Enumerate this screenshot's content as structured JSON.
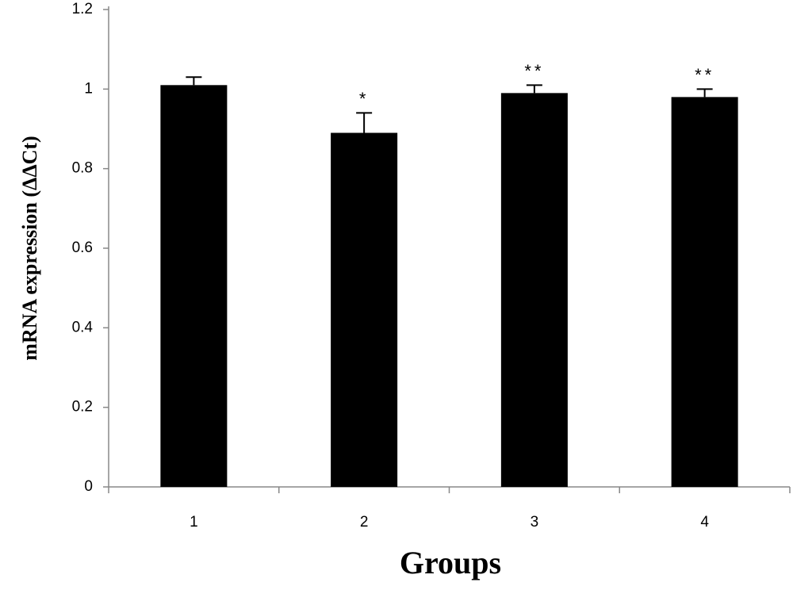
{
  "chart_data": {
    "type": "bar",
    "x_label": "Groups",
    "y_label": "mRNA expression (ΔΔCt)",
    "categories": [
      "1",
      "2",
      "3",
      "4"
    ],
    "values": [
      1.01,
      0.89,
      0.99,
      0.98
    ],
    "errors": [
      0.02,
      0.05,
      0.02,
      0.02
    ],
    "annotations": [
      null,
      "*",
      "**",
      "**"
    ],
    "color": "#000000",
    "ylim": [
      0,
      1.2
    ],
    "yticks": [
      0,
      0.2,
      0.4,
      0.6,
      0.8,
      1,
      1.2
    ],
    "grid": false
  }
}
